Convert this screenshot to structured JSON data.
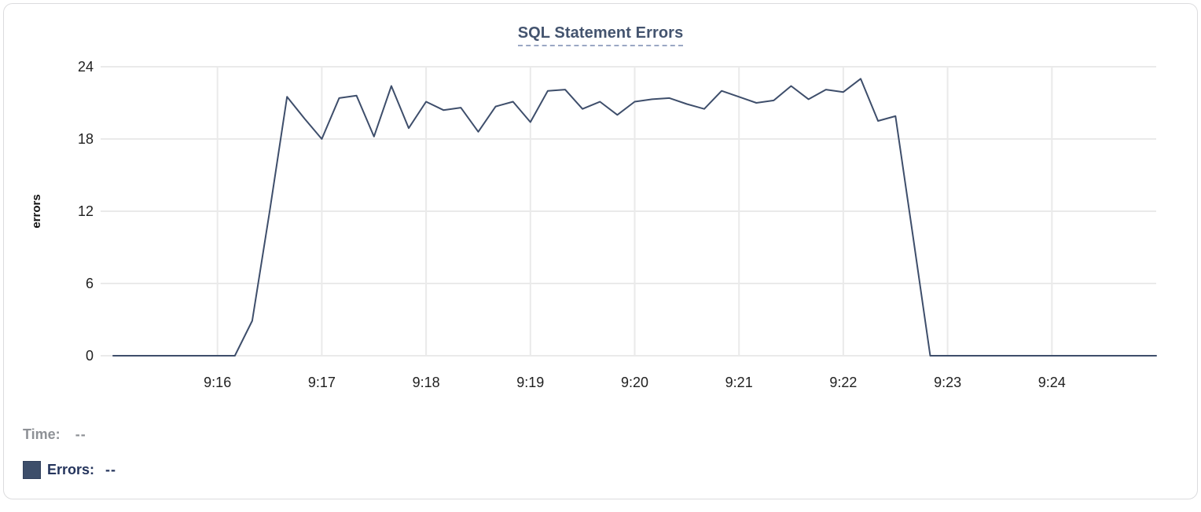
{
  "chart_data": {
    "type": "line",
    "title": "SQL Statement Errors",
    "xlabel": "",
    "ylabel": "errors",
    "ylim": [
      0,
      24
    ],
    "y_ticks": [
      0,
      6,
      12,
      18,
      24
    ],
    "x_ticks": [
      "9:16",
      "9:17",
      "9:18",
      "9:19",
      "9:20",
      "9:21",
      "9:22",
      "9:23",
      "9:24"
    ],
    "x_range": [
      "9:15:00",
      "9:25:00"
    ],
    "grid": true,
    "legend_position": "bottom-left",
    "series": [
      {
        "name": "Errors",
        "color": "#3E4E6B",
        "x": [
          "9:15:00",
          "9:15:10",
          "9:15:20",
          "9:15:30",
          "9:15:40",
          "9:15:50",
          "9:16:00",
          "9:16:10",
          "9:16:20",
          "9:16:30",
          "9:16:40",
          "9:16:50",
          "9:17:00",
          "9:17:10",
          "9:17:20",
          "9:17:30",
          "9:17:40",
          "9:17:50",
          "9:18:00",
          "9:18:10",
          "9:18:20",
          "9:18:30",
          "9:18:40",
          "9:18:50",
          "9:19:00",
          "9:19:10",
          "9:19:20",
          "9:19:30",
          "9:19:40",
          "9:19:50",
          "9:20:00",
          "9:20:10",
          "9:20:20",
          "9:20:30",
          "9:20:40",
          "9:20:50",
          "9:21:00",
          "9:21:10",
          "9:21:20",
          "9:21:30",
          "9:21:40",
          "9:21:50",
          "9:22:00",
          "9:22:10",
          "9:22:20",
          "9:22:30",
          "9:22:40",
          "9:22:50",
          "9:23:00",
          "9:23:10",
          "9:23:20",
          "9:23:30",
          "9:23:40",
          "9:23:50",
          "9:24:00",
          "9:24:10",
          "9:24:20",
          "9:24:30",
          "9:24:40",
          "9:24:50",
          "9:25:00"
        ],
        "values": [
          0,
          0,
          0,
          0,
          0,
          0,
          0,
          0,
          2.9,
          12,
          21.5,
          19.7,
          18,
          21.4,
          21.6,
          18.2,
          22.4,
          18.9,
          21.1,
          20.4,
          20.6,
          18.6,
          20.7,
          21.1,
          19.4,
          22,
          22.1,
          20.5,
          21.1,
          20,
          21.1,
          21.3,
          21.4,
          20.9,
          20.5,
          22,
          21.5,
          21,
          21.2,
          22.4,
          21.3,
          22.1,
          21.9,
          23,
          19.5,
          19.9,
          10,
          0,
          0,
          0,
          0,
          0,
          0,
          0,
          0,
          0,
          0,
          0,
          0,
          0,
          0
        ]
      }
    ]
  },
  "readout": {
    "time_label": "Time:",
    "time_value": "--",
    "errors_label": "Errors:",
    "errors_value": "--",
    "swatch_color": "#3D4E6A"
  },
  "colors": {
    "line": "#3E4E6B",
    "gridline": "#EAEAEA",
    "tick_text": "#1F1F1F",
    "axis_title_text": "#111111",
    "title_text": "#44546F",
    "title_underline": "#9AA7C4",
    "card_border": "#DCDCDE"
  }
}
